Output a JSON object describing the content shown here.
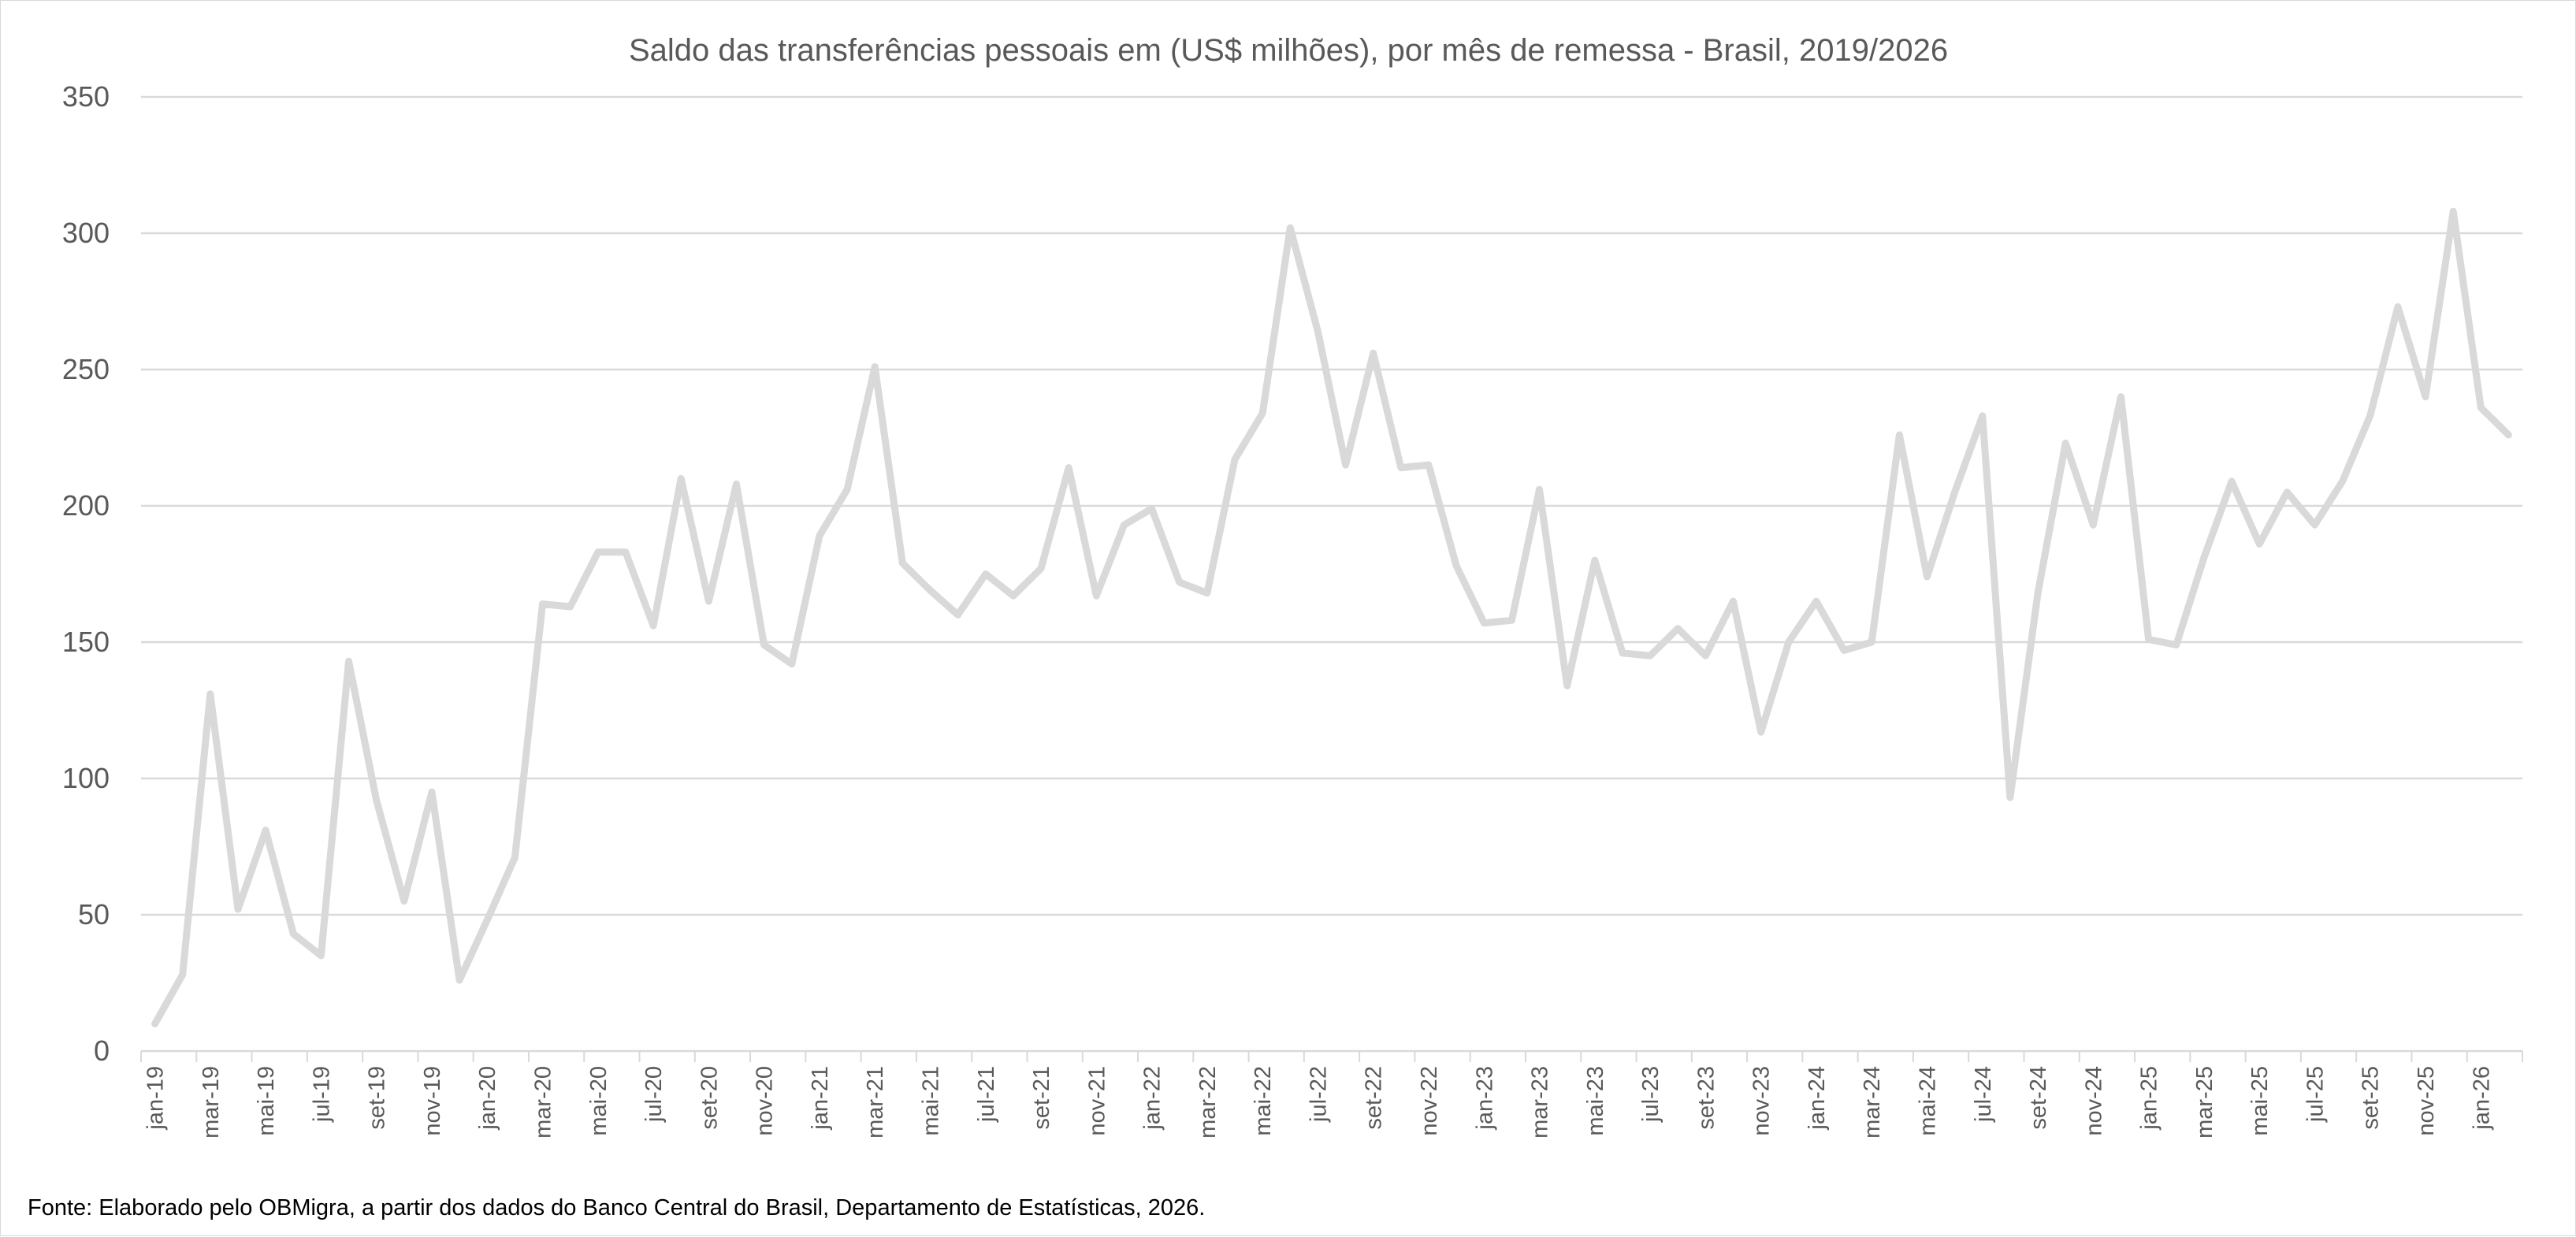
{
  "chart_data": {
    "type": "line",
    "title": "Saldo das transferências pessoais em (US$ milhões), por mês de remessa - Brasil, 2019/2026",
    "xlabel": "",
    "ylabel": "",
    "ylim": [
      0,
      350
    ],
    "yticks": [
      0,
      50,
      100,
      150,
      200,
      250,
      300,
      350
    ],
    "grid": true,
    "legend": "none",
    "line_color": "#d9d9d9",
    "grid_color": "#d9d9d9",
    "text_color": "#595959",
    "x_tick_labels": [
      "jan-19",
      "mar-19",
      "mai-19",
      "jul-19",
      "set-19",
      "nov-19",
      "jan-20",
      "mar-20",
      "mai-20",
      "jul-20",
      "set-20",
      "nov-20",
      "jan-21",
      "mar-21",
      "mai-21",
      "jul-21",
      "set-21",
      "nov-21",
      "jan-22",
      "mar-22",
      "mai-22",
      "jul-22",
      "set-22",
      "nov-22",
      "jan-23",
      "mar-23",
      "mai-23",
      "jul-23",
      "set-23",
      "nov-23",
      "jan-24",
      "mar-24",
      "mai-24",
      "jul-24",
      "set-24",
      "nov-24",
      "jan-25",
      "mar-25",
      "mai-25",
      "jul-25",
      "set-25",
      "nov-25",
      "jan-26"
    ],
    "series": [
      {
        "name": "Saldo",
        "values": [
          10,
          28,
          131,
          52,
          81,
          43,
          35,
          143,
          92,
          55,
          95,
          26,
          48,
          71,
          164,
          163,
          183,
          183,
          156,
          210,
          165,
          208,
          149,
          142,
          189,
          206,
          251,
          179,
          169,
          160,
          175,
          167,
          177,
          214,
          167,
          193,
          199,
          172,
          168,
          217,
          234,
          302,
          264,
          215,
          256,
          214,
          215,
          178,
          157,
          158,
          206,
          134,
          180,
          146,
          145,
          155,
          145,
          165,
          117,
          150,
          165,
          147,
          150,
          226,
          174,
          205,
          233,
          93,
          168,
          223,
          193,
          240,
          151,
          149,
          181,
          209,
          186,
          205,
          193,
          209,
          233,
          273,
          240,
          308,
          236,
          226
        ]
      }
    ]
  },
  "footer": {
    "source": "Fonte:  Elaborado pelo OBMigra, a partir dos dados do Banco Central do Brasil, Departamento de Estatísticas, 2026."
  }
}
